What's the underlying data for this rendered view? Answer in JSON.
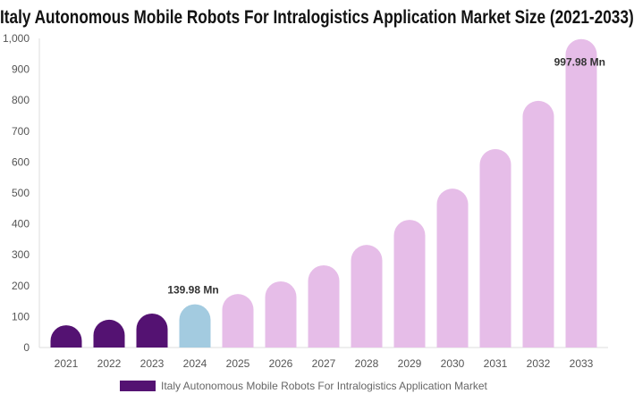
{
  "chart_data": {
    "type": "bar",
    "title": "Italy Autonomous Mobile Robots For Intralogistics Application Market Size (2021-2033)",
    "categories": [
      "2021",
      "2022",
      "2023",
      "2024",
      "2025",
      "2026",
      "2027",
      "2028",
      "2029",
      "2030",
      "2031",
      "2032",
      "2033"
    ],
    "series": [
      {
        "name": "Italy Autonomous Mobile Robots For Intralogistics Application Market",
        "values": [
          72,
          90,
          110,
          139.98,
          173,
          214,
          266,
          332,
          413,
          514,
          642,
          798,
          997.98
        ]
      }
    ],
    "data_labels": {
      "3": "139.98 Mn",
      "12": "997.98 Mn"
    },
    "ylim": [
      0,
      1000
    ],
    "yticks": [
      "0",
      "100",
      "200",
      "300",
      "400",
      "500",
      "600",
      "700",
      "800",
      "900",
      "1,000"
    ],
    "xlabel": "",
    "ylabel": "",
    "grid": false,
    "legend": "bottom",
    "colors": {
      "historical": "#541272",
      "current": "#a3cbe0",
      "forecast": "#e6bde8"
    }
  }
}
